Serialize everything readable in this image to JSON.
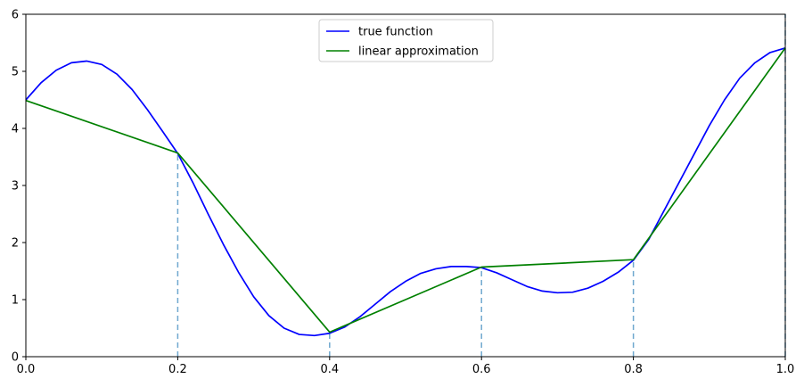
{
  "chart_data": {
    "type": "line",
    "title": "",
    "xlabel": "",
    "ylabel": "",
    "xlim": [
      0.0,
      1.0
    ],
    "ylim": [
      0,
      6
    ],
    "xticks": [
      "0.0",
      "0.2",
      "0.4",
      "0.6",
      "0.8",
      "1.0"
    ],
    "yticks": [
      "0",
      "1",
      "2",
      "3",
      "4",
      "5",
      "6"
    ],
    "grid": false,
    "legend_position": "top-center",
    "vlines": {
      "x": [
        0.2,
        0.4,
        0.6,
        0.8,
        1.0
      ],
      "color": "#6fa8cf",
      "style": "dashed"
    },
    "series": [
      {
        "name": "true function",
        "color": "#0000ff",
        "x": [
          0.0,
          0.02,
          0.04,
          0.06,
          0.08,
          0.1,
          0.12,
          0.14,
          0.16,
          0.18,
          0.2,
          0.22,
          0.24,
          0.26,
          0.28,
          0.3,
          0.32,
          0.34,
          0.36,
          0.38,
          0.4,
          0.42,
          0.44,
          0.46,
          0.48,
          0.5,
          0.52,
          0.54,
          0.56,
          0.58,
          0.6,
          0.62,
          0.64,
          0.66,
          0.68,
          0.7,
          0.72,
          0.74,
          0.76,
          0.78,
          0.8,
          0.82,
          0.84,
          0.86,
          0.88,
          0.9,
          0.92,
          0.94,
          0.96,
          0.98,
          1.0
        ],
        "y": [
          4.5,
          4.8,
          5.02,
          5.15,
          5.18,
          5.12,
          4.95,
          4.68,
          4.33,
          3.95,
          3.56,
          3.05,
          2.5,
          1.97,
          1.48,
          1.05,
          0.72,
          0.5,
          0.39,
          0.37,
          0.41,
          0.52,
          0.7,
          0.92,
          1.14,
          1.32,
          1.46,
          1.54,
          1.58,
          1.58,
          1.56,
          1.47,
          1.35,
          1.23,
          1.15,
          1.12,
          1.13,
          1.2,
          1.32,
          1.48,
          1.69,
          2.05,
          2.55,
          3.05,
          3.55,
          4.05,
          4.5,
          4.88,
          5.15,
          5.33,
          5.41
        ]
      },
      {
        "name": "linear approximation",
        "color": "#008000",
        "x": [
          0.0,
          0.2,
          0.4,
          0.6,
          0.8,
          1.0
        ],
        "y": [
          4.49,
          3.57,
          0.43,
          1.57,
          1.7,
          5.41
        ]
      }
    ]
  }
}
